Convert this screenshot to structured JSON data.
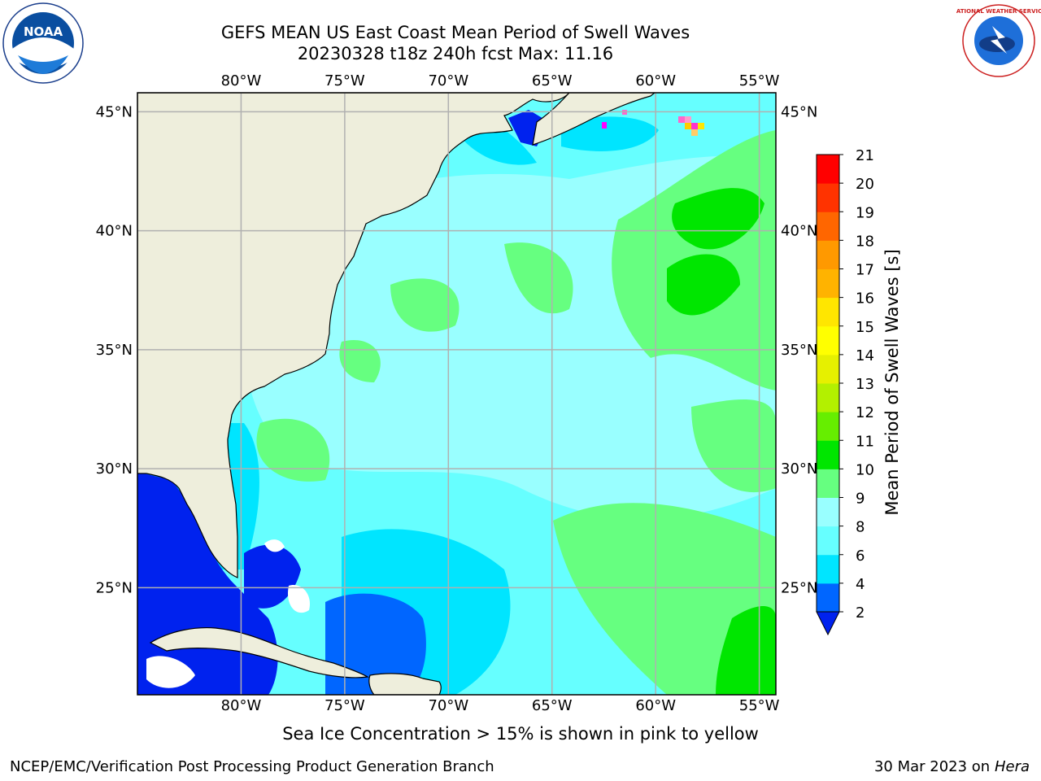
{
  "title": {
    "line1": "GEFS MEAN US East Coast Mean Period of Swell Waves",
    "line2": "20230328 t18z 240h fcst   Max: 11.16"
  },
  "map": {
    "lon_ticks": [
      "80°W",
      "75°W",
      "70°W",
      "65°W",
      "60°W",
      "55°W"
    ],
    "lat_ticks": [
      "45°N",
      "40°N",
      "35°N",
      "30°N",
      "25°N"
    ],
    "extent": {
      "lon_min": -85,
      "lon_max": -54.2,
      "lat_min": 20.5,
      "lat_max": 45.8
    },
    "land_color": "#eeeedc",
    "grid_color": "#b0b0b0"
  },
  "colorbar": {
    "label": "Mean Period of Swell Waves [s]",
    "ticks": [
      "2",
      "4",
      "6",
      "8",
      "9",
      "10",
      "11",
      "12",
      "13",
      "14",
      "15",
      "16",
      "17",
      "18",
      "19",
      "20",
      "21"
    ],
    "colors": [
      "#0066ff",
      "#00e5ff",
      "#66ffff",
      "#99ffff",
      "#66ff80",
      "#00e600",
      "#66ee00",
      "#b3f000",
      "#e6f000",
      "#ffff00",
      "#ffe600",
      "#ffb300",
      "#ff9900",
      "#ff6600",
      "#ff3300",
      "#ff0000"
    ],
    "under_color": "#0022ee"
  },
  "note": "Sea Ice Concentration > 15% is shown in pink to yellow",
  "footer": {
    "left": "NCEP/EMC/Verification Post Processing Product Generation Branch",
    "right_date": "30 Mar 2023 on",
    "right_host": "Hera"
  },
  "logos": {
    "noaa_text": "NOAA",
    "nws_text": "NATIONAL WEATHER SERVICE"
  }
}
